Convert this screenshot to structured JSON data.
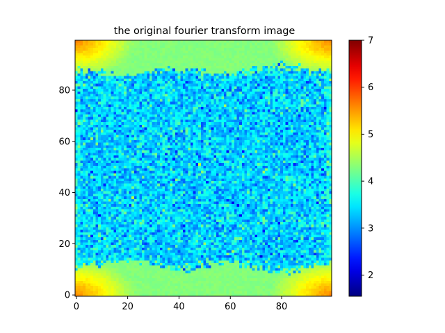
{
  "chart_data": {
    "type": "heatmap",
    "title": "the original fourier transform image",
    "xlabel": "",
    "ylabel": "",
    "shape": [
      100,
      100
    ],
    "x_ticks": [
      0,
      20,
      40,
      60,
      80
    ],
    "y_ticks": [
      0,
      20,
      40,
      60,
      80
    ],
    "xlim": [
      -0.5,
      99.5
    ],
    "ylim": [
      99.5,
      -0.5
    ],
    "colormap": "jet",
    "clim": [
      1.55,
      7.0
    ],
    "colorbar_ticks": [
      2,
      3,
      4,
      5,
      6,
      7
    ],
    "grid": false,
    "value_model": {
      "center_noise_mean": 3.35,
      "center_noise_std": 0.35,
      "edge_band_value": 4.3,
      "corner_peak_value": 5.6,
      "seed": 7
    }
  }
}
